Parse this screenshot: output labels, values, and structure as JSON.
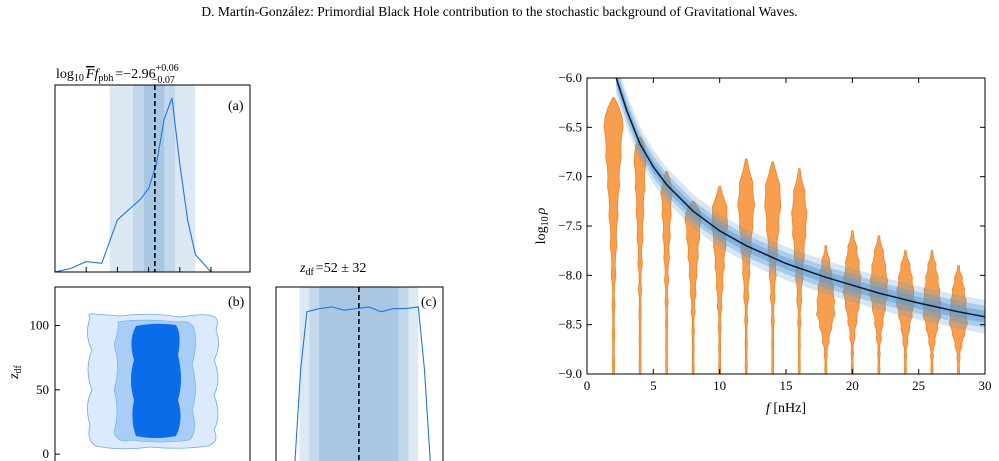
{
  "header": {
    "text": "D. Martín-González: Primordial Black Hole contribution to the stochastic background of Gravitational Waves."
  },
  "colors": {
    "blue_line": "#1f77e4",
    "band_light": "#dce8f3",
    "band_mid": "#c3d8ea",
    "band_dark": "#a9c7e2",
    "violin": "#f79f4f",
    "violin_edge": "#e8862b",
    "curve": "#0d1b2a",
    "curve_band": "#5b9bd5",
    "contour_light": "#cfe2fb",
    "contour_mid": "#8fbff5",
    "contour_dark": "#0a6ce8"
  },
  "panels": {
    "a": {
      "title_lhs": "log",
      "title_sub": "10",
      "title_sym": "F",
      "title_f": "f",
      "title_fsub": "pbh",
      "title_eq": "=−2.96",
      "title_sup": "+0.06",
      "title_inf": "−0.07",
      "tag": "(a)"
    },
    "b": {
      "tag": "(b)",
      "ylabel": "z",
      "ylabel_sub": "df"
    },
    "c": {
      "title": "z",
      "title_sub": "df",
      "title_val": "=52 ± 32",
      "tag": "(c)"
    }
  },
  "chart_data": [
    {
      "type": "area",
      "panel": "a",
      "description_none": "",
      "x": [
        -3.6,
        -3.5,
        -3.4,
        -3.3,
        -3.2,
        -3.1,
        -3.05,
        -3.0,
        -2.95,
        -2.9,
        -2.85,
        -2.8,
        -2.75,
        -2.7,
        -2.6,
        -2.5,
        -2.4
      ],
      "y": [
        0.0,
        0.02,
        0.06,
        0.05,
        0.3,
        0.38,
        0.42,
        0.48,
        0.62,
        0.88,
        1.0,
        0.62,
        0.3,
        0.1,
        0.0,
        0.0,
        0.0
      ],
      "median": -2.96,
      "bands_68_95_99": [
        [
          -3.03,
          -2.9
        ],
        [
          -3.1,
          -2.83
        ],
        [
          -3.25,
          -2.7
        ]
      ]
    },
    {
      "type": "heatmap",
      "panel": "b",
      "yticks": [
        0,
        50,
        100
      ],
      "ylim": [
        -10,
        130
      ]
    },
    {
      "type": "area",
      "panel": "c",
      "x": [
        0,
        5,
        10,
        20,
        30,
        40,
        50,
        60,
        70,
        80,
        90,
        100,
        105,
        110
      ],
      "y": [
        0.0,
        0.6,
        0.95,
        0.97,
        0.98,
        0.96,
        0.97,
        0.98,
        0.95,
        0.97,
        0.97,
        0.98,
        0.6,
        0.0
      ],
      "median": 52,
      "error": 32
    },
    {
      "type": "scatter",
      "panel": "right",
      "title": "",
      "xlabel": "f [nHz]",
      "ylabel": "log10 ρ",
      "xlim": [
        0,
        30
      ],
      "ylim": [
        -9.0,
        -6.0
      ],
      "xticks": [
        "0",
        "5",
        "10",
        "15",
        "20",
        "25",
        "30"
      ],
      "yticks": [
        "−6.0",
        "−6.5",
        "−7.0",
        "−7.5",
        "−8.0",
        "−8.5",
        "−9.0"
      ],
      "violins": [
        {
          "f": 2,
          "top": -6.2,
          "mode": -6.45,
          "bottom": -9.0,
          "width": 1.4
        },
        {
          "f": 4,
          "top": -6.6,
          "mode": -6.75,
          "bottom": -9.0,
          "width": 0.9
        },
        {
          "f": 6,
          "top": -6.95,
          "mode": -7.15,
          "bottom": -9.0,
          "width": 0.8
        },
        {
          "f": 8,
          "top": -7.25,
          "mode": -7.4,
          "bottom": -9.0,
          "width": 1.2
        },
        {
          "f": 10,
          "top": -7.1,
          "mode": -7.45,
          "bottom": -9.0,
          "width": 1.2
        },
        {
          "f": 12,
          "top": -6.82,
          "mode": -7.3,
          "bottom": -9.0,
          "width": 1.2
        },
        {
          "f": 14,
          "top": -6.85,
          "mode": -7.25,
          "bottom": -9.0,
          "width": 1.2
        },
        {
          "f": 16,
          "top": -6.92,
          "mode": -7.45,
          "bottom": -9.0,
          "width": 1.1
        },
        {
          "f": 18,
          "top": -7.7,
          "mode": -8.4,
          "bottom": -9.0,
          "width": 1.3
        },
        {
          "f": 20,
          "top": -7.55,
          "mode": -8.2,
          "bottom": -9.0,
          "width": 1.3
        },
        {
          "f": 22,
          "top": -7.6,
          "mode": -8.2,
          "bottom": -9.0,
          "width": 1.3
        },
        {
          "f": 24,
          "top": -7.75,
          "mode": -8.3,
          "bottom": -9.0,
          "width": 1.3
        },
        {
          "f": 26,
          "top": -7.75,
          "mode": -8.4,
          "bottom": -9.0,
          "width": 1.3
        },
        {
          "f": 28,
          "top": -7.9,
          "mode": -8.5,
          "bottom": -9.0,
          "width": 1.3
        }
      ],
      "curve": {
        "f": [
          2.2,
          3,
          4,
          5,
          6,
          8,
          10,
          12,
          15,
          18,
          20,
          22,
          25,
          28,
          30
        ],
        "log10rho": [
          -6.0,
          -6.33,
          -6.67,
          -6.9,
          -7.08,
          -7.35,
          -7.55,
          -7.7,
          -7.88,
          -8.02,
          -8.1,
          -8.18,
          -8.28,
          -8.37,
          -8.42
        ]
      }
    }
  ]
}
